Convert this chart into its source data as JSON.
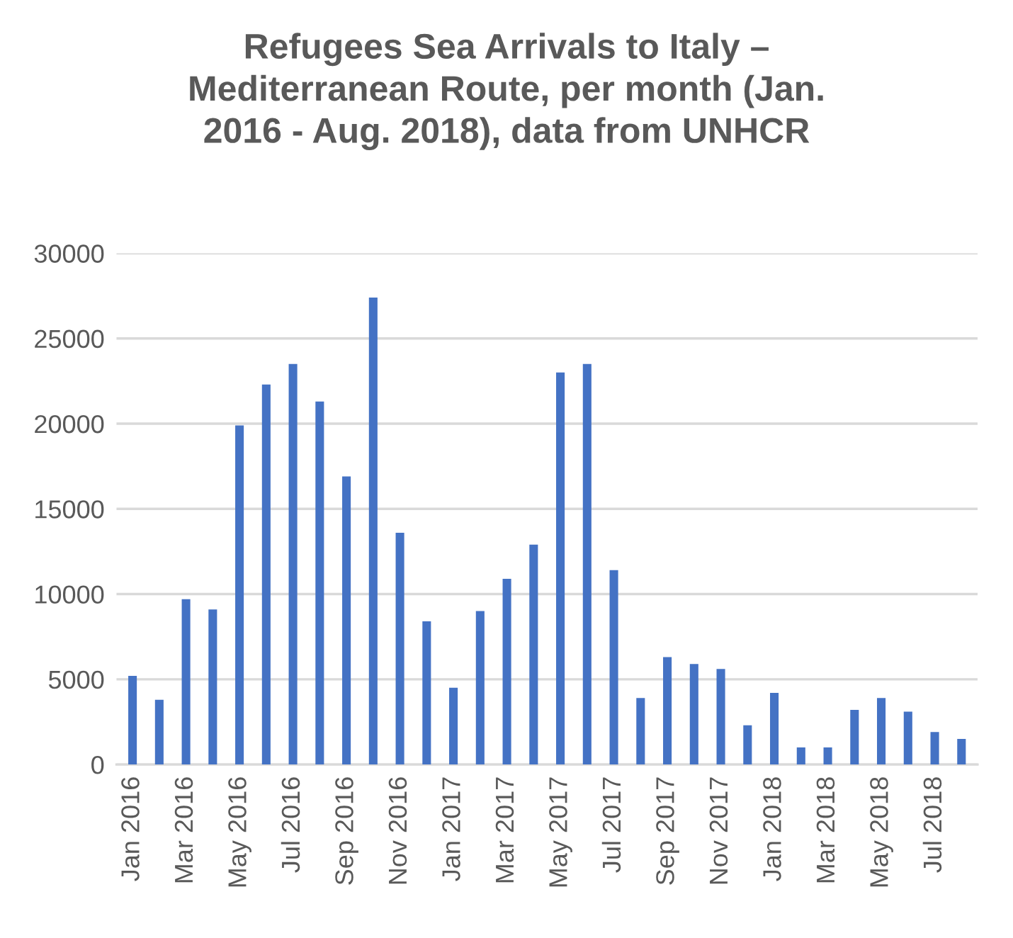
{
  "chart_data": {
    "type": "bar",
    "title": "Refugees Sea Arrivals to Italy –\nMediterranean Route, per month (Jan.\n2016 - Aug. 2018), data from UNHCR",
    "categories": [
      "Jan 2016",
      null,
      "Mar 2016",
      null,
      "May 2016",
      null,
      "Jul 2016",
      null,
      "Sep 2016",
      null,
      "Nov 2016",
      null,
      "Jan 2017",
      null,
      "Mar 2017",
      null,
      "May 2017",
      null,
      "Jul 2017",
      null,
      "Sep 2017",
      null,
      "Nov 2017",
      null,
      "Jan 2018",
      null,
      "Mar 2018",
      null,
      "May 2018",
      null,
      "Jul 2018",
      null
    ],
    "values": [
      5200,
      3800,
      9700,
      9100,
      19900,
      22300,
      23500,
      21300,
      16900,
      27400,
      13600,
      8400,
      4500,
      9000,
      10900,
      12900,
      23000,
      23500,
      11400,
      3900,
      6300,
      5900,
      5600,
      2300,
      4200,
      1000,
      1000,
      3200,
      3900,
      3100,
      1900,
      1500
    ],
    "color": "#4472c4",
    "ylim": [
      0,
      30000
    ],
    "yticks": [
      0,
      5000,
      10000,
      15000,
      20000,
      25000,
      30000
    ],
    "grid": "y"
  }
}
